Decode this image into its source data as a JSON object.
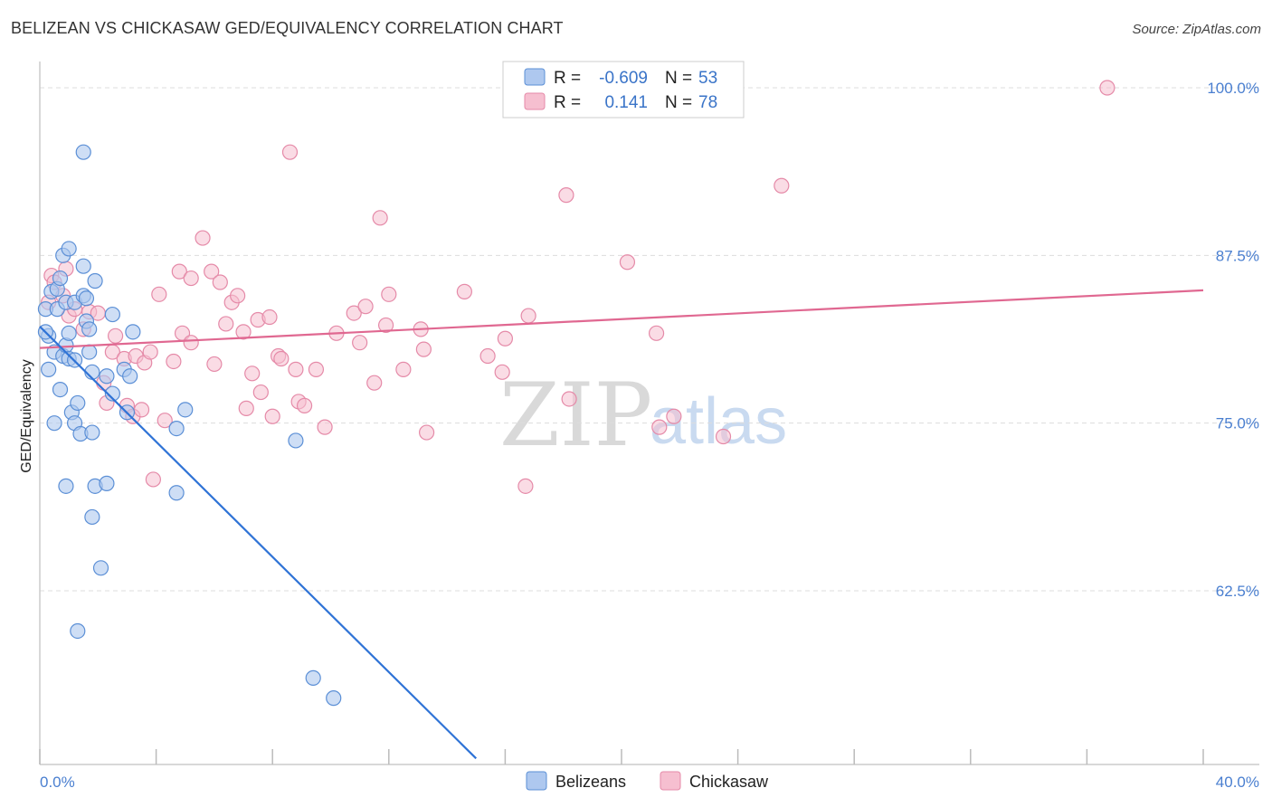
{
  "title": "BELIZEAN VS CHICKASAW GED/EQUIVALENCY CORRELATION CHART",
  "source": "Source: ZipAtlas.com",
  "watermark": {
    "zip": "ZIP",
    "atlas": "atlas"
  },
  "legend_top": {
    "rows": [
      {
        "r_label": "R =",
        "r_value": "-0.609",
        "n_label": "N =",
        "n_value": "53"
      },
      {
        "r_label": "R =",
        "r_value": "0.141",
        "n_label": "N =",
        "n_value": "78"
      }
    ]
  },
  "legend_bottom": {
    "series1": "Belizeans",
    "series2": "Chickasaw"
  },
  "colors": {
    "blue_fill": "#aec8ef",
    "blue_stroke": "#5b8fd6",
    "blue_line": "#2f73d6",
    "pink_fill": "#f6bfd0",
    "pink_stroke": "#e58aa8",
    "pink_line": "#e06891",
    "grid": "#dcdcdc",
    "tick_label": "#4a7fd0"
  },
  "chart_data": {
    "type": "scatter",
    "title": "BELIZEAN VS CHICKASAW GED/EQUIVALENCY CORRELATION CHART",
    "xlabel": "",
    "ylabel": "GED/Equivalency",
    "xlim": [
      0,
      40
    ],
    "ylim": [
      50,
      101
    ],
    "x_tick_labels": [
      "0.0%",
      "40.0%"
    ],
    "y_ticks": [
      62.5,
      75.0,
      87.5,
      100.0
    ],
    "y_tick_labels": [
      "62.5%",
      "75.0%",
      "87.5%",
      "100.0%"
    ],
    "legend": [
      "Belizeans",
      "Chickasaw"
    ],
    "series": [
      {
        "name": "Belizeans",
        "r": -0.609,
        "n": 53,
        "trend": {
          "x": [
            0.0,
            15.0
          ],
          "y": [
            82.2,
            50.0
          ]
        },
        "points": [
          [
            0.2,
            83.5
          ],
          [
            0.3,
            81.5
          ],
          [
            0.2,
            81.8
          ],
          [
            0.3,
            79.0
          ],
          [
            0.4,
            84.8
          ],
          [
            0.5,
            80.3
          ],
          [
            0.5,
            75.0
          ],
          [
            0.6,
            83.5
          ],
          [
            0.6,
            85.0
          ],
          [
            0.7,
            85.8
          ],
          [
            0.8,
            87.5
          ],
          [
            0.7,
            77.5
          ],
          [
            0.8,
            80.0
          ],
          [
            0.9,
            80.8
          ],
          [
            1.0,
            88.0
          ],
          [
            0.9,
            84.0
          ],
          [
            0.9,
            70.3
          ],
          [
            1.0,
            81.7
          ],
          [
            1.0,
            79.8
          ],
          [
            1.1,
            75.8
          ],
          [
            1.2,
            84.0
          ],
          [
            1.2,
            79.7
          ],
          [
            1.2,
            75.0
          ],
          [
            1.3,
            76.5
          ],
          [
            1.4,
            74.2
          ],
          [
            1.5,
            84.5
          ],
          [
            1.5,
            86.7
          ],
          [
            1.6,
            82.6
          ],
          [
            1.5,
            95.2
          ],
          [
            1.6,
            84.3
          ],
          [
            1.7,
            82.0
          ],
          [
            1.7,
            80.3
          ],
          [
            1.8,
            78.8
          ],
          [
            1.8,
            74.3
          ],
          [
            1.8,
            68.0
          ],
          [
            1.9,
            85.6
          ],
          [
            1.9,
            70.3
          ],
          [
            2.1,
            64.2
          ],
          [
            2.3,
            70.5
          ],
          [
            2.3,
            78.5
          ],
          [
            2.5,
            77.2
          ],
          [
            2.5,
            83.1
          ],
          [
            2.9,
            79.0
          ],
          [
            3.1,
            78.5
          ],
          [
            3.0,
            75.8
          ],
          [
            3.2,
            81.8
          ],
          [
            4.7,
            74.6
          ],
          [
            4.7,
            69.8
          ],
          [
            5.0,
            76.0
          ],
          [
            8.8,
            73.7
          ],
          [
            9.4,
            56.0
          ],
          [
            10.1,
            54.5
          ],
          [
            1.3,
            59.5
          ]
        ]
      },
      {
        "name": "Chickasaw",
        "r": 0.141,
        "n": 78,
        "trend": {
          "x": [
            0.0,
            40.0
          ],
          "y": [
            80.6,
            84.9
          ]
        },
        "points": [
          [
            0.3,
            84.0
          ],
          [
            0.4,
            86.0
          ],
          [
            0.5,
            85.5
          ],
          [
            0.8,
            84.5
          ],
          [
            0.9,
            86.5
          ],
          [
            1.0,
            83.0
          ],
          [
            1.2,
            83.5
          ],
          [
            1.5,
            82.0
          ],
          [
            1.7,
            83.3
          ],
          [
            2.0,
            83.2
          ],
          [
            2.2,
            78.0
          ],
          [
            2.3,
            76.5
          ],
          [
            2.5,
            80.3
          ],
          [
            2.6,
            81.5
          ],
          [
            2.9,
            79.8
          ],
          [
            3.0,
            76.3
          ],
          [
            3.2,
            75.5
          ],
          [
            3.3,
            80.0
          ],
          [
            3.5,
            76.0
          ],
          [
            3.6,
            79.5
          ],
          [
            3.8,
            80.3
          ],
          [
            3.9,
            70.8
          ],
          [
            4.1,
            84.6
          ],
          [
            4.3,
            75.2
          ],
          [
            4.6,
            79.6
          ],
          [
            4.8,
            86.3
          ],
          [
            4.9,
            81.7
          ],
          [
            5.2,
            85.8
          ],
          [
            5.2,
            81.0
          ],
          [
            5.6,
            88.8
          ],
          [
            5.9,
            86.3
          ],
          [
            6.0,
            79.4
          ],
          [
            6.2,
            85.5
          ],
          [
            6.4,
            82.4
          ],
          [
            6.6,
            84.0
          ],
          [
            6.8,
            84.5
          ],
          [
            7.0,
            81.8
          ],
          [
            7.1,
            76.1
          ],
          [
            7.3,
            78.7
          ],
          [
            7.5,
            82.7
          ],
          [
            7.6,
            77.3
          ],
          [
            7.9,
            82.9
          ],
          [
            8.0,
            75.5
          ],
          [
            8.2,
            80.0
          ],
          [
            8.3,
            79.8
          ],
          [
            8.6,
            95.2
          ],
          [
            8.8,
            79.0
          ],
          [
            8.9,
            76.6
          ],
          [
            9.1,
            76.3
          ],
          [
            9.5,
            79.0
          ],
          [
            9.8,
            74.7
          ],
          [
            10.2,
            81.7
          ],
          [
            10.8,
            83.2
          ],
          [
            11.0,
            81.0
          ],
          [
            11.2,
            83.7
          ],
          [
            11.5,
            78.0
          ],
          [
            11.7,
            90.3
          ],
          [
            11.9,
            82.3
          ],
          [
            12.0,
            84.6
          ],
          [
            12.5,
            79.0
          ],
          [
            13.1,
            82.0
          ],
          [
            13.2,
            80.5
          ],
          [
            13.3,
            74.3
          ],
          [
            14.6,
            84.8
          ],
          [
            15.4,
            80.0
          ],
          [
            15.9,
            78.8
          ],
          [
            16.0,
            81.3
          ],
          [
            16.8,
            83.0
          ],
          [
            16.7,
            70.3
          ],
          [
            18.1,
            92.0
          ],
          [
            18.2,
            76.8
          ],
          [
            20.2,
            87.0
          ],
          [
            21.2,
            81.7
          ],
          [
            21.3,
            74.7
          ],
          [
            21.8,
            75.5
          ],
          [
            23.5,
            74.0
          ],
          [
            25.5,
            92.7
          ],
          [
            36.7,
            100.0
          ]
        ]
      }
    ]
  }
}
